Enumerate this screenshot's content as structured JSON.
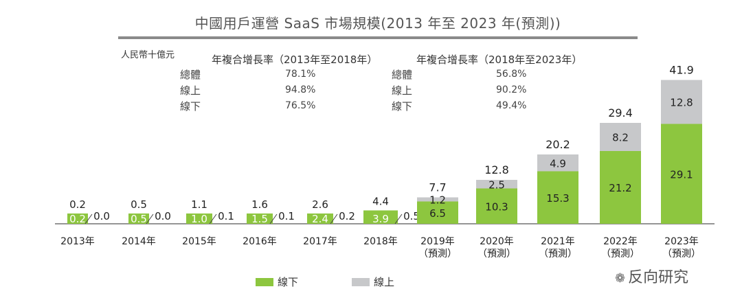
{
  "title": "中國用戶運營 SaaS 市場規模(2013 年至 2023 年(預測))",
  "unit": "人民幣十億元",
  "cagr": {
    "h1": "年複合增長率（2013年至2018年）",
    "h2": "年複合增長率（2018年至2023年）",
    "rows": [
      {
        "label": "總體",
        "v1": "78.1%",
        "v2": "56.8%"
      },
      {
        "label": "線上",
        "v1": "94.8%",
        "v2": "90.2%"
      },
      {
        "label": "線下",
        "v1": "76.5%",
        "v2": "49.4%"
      }
    ]
  },
  "chart_data": {
    "type": "bar",
    "stacked": true,
    "categories": [
      "2013年",
      "2014年",
      "2015年",
      "2016年",
      "2017年",
      "2018年",
      "2019年\n（預測）",
      "2020年\n（預測）",
      "2021年\n（預測）",
      "2022年\n（預測）",
      "2023年\n（預測）"
    ],
    "series": [
      {
        "name": "線下",
        "color": "#8dc63f",
        "values": [
          0.2,
          0.5,
          1.0,
          1.5,
          2.4,
          3.9,
          6.5,
          10.3,
          15.3,
          21.2,
          29.1
        ]
      },
      {
        "name": "線上",
        "color": "#c7c8ca",
        "values": [
          0.0,
          0.0,
          0.1,
          0.1,
          0.2,
          0.5,
          1.2,
          2.5,
          4.9,
          8.2,
          12.8
        ]
      }
    ],
    "totals": [
      0.2,
      0.5,
      1.1,
      1.6,
      2.6,
      4.4,
      7.7,
      12.8,
      20.2,
      29.4,
      41.9
    ],
    "legend": [
      "線下",
      "線上"
    ]
  },
  "watermark": {
    "text": "反向研究",
    "icon": "wechat-icon"
  }
}
